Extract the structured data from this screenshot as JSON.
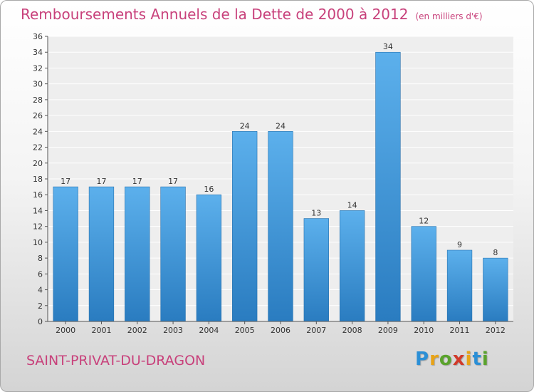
{
  "title": "Remboursements Annuels de la Dette de 2000 à 2012",
  "unit_note": "(en milliers d'€)",
  "commune": "SAINT-PRIVAT-DU-DRAGON",
  "logo": {
    "letters": [
      "P",
      "r",
      "o",
      "x",
      "i",
      "t",
      "i"
    ],
    "colors": [
      "#2b8fd6",
      "#e8a317",
      "#5aa32c",
      "#d13a2a",
      "#e8a317",
      "#2b8fd6",
      "#5aa32c"
    ]
  },
  "colors": {
    "bar_top": "#5cb0ec",
    "bar_bottom": "#2a7cc0",
    "title": "#c8417b"
  },
  "chart_data": {
    "type": "bar",
    "title": "Remboursements Annuels de la Dette de 2000 à 2012",
    "subtitle": "(en milliers d'€)",
    "categories": [
      "2000",
      "2001",
      "2002",
      "2003",
      "2004",
      "2005",
      "2006",
      "2007",
      "2008",
      "2009",
      "2010",
      "2011",
      "2012"
    ],
    "values": [
      17,
      17,
      17,
      17,
      16,
      24,
      24,
      13,
      14,
      34,
      12,
      9,
      8
    ],
    "xlabel": "",
    "ylabel": "",
    "ylim": [
      0,
      36
    ],
    "ytick_step": 2,
    "grid": true,
    "data_labels": true
  }
}
